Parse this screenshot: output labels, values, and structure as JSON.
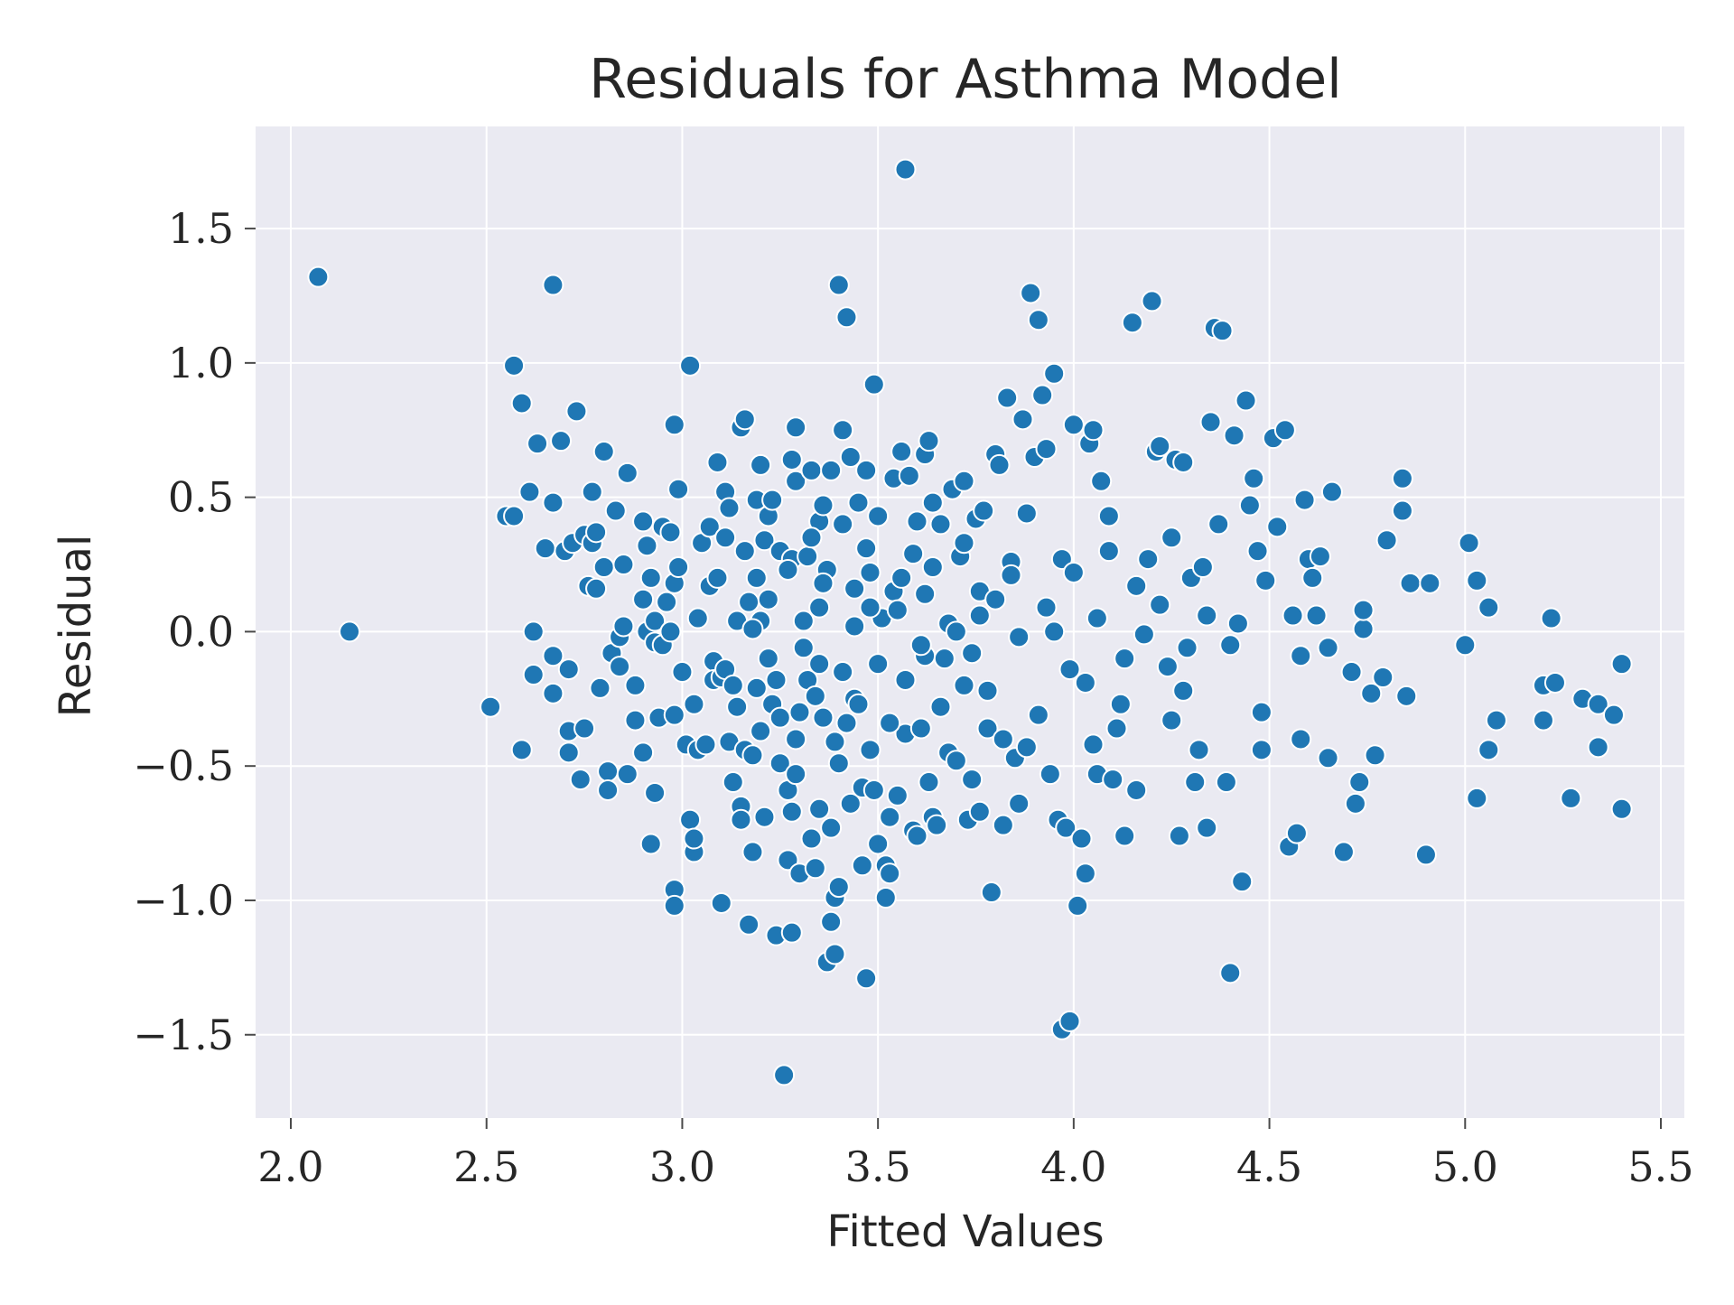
{
  "chart_data": {
    "type": "scatter",
    "title": "Residuals for Asthma Model",
    "xlabel": "Fitted Values",
    "ylabel": "Residual",
    "xlim": [
      1.91,
      5.56
    ],
    "ylim": [
      -1.81,
      1.88
    ],
    "x_ticks": [
      2.0,
      2.5,
      3.0,
      3.5,
      4.0,
      4.5,
      5.0,
      5.5
    ],
    "x_tick_labels": [
      "2.0",
      "2.5",
      "3.0",
      "3.5",
      "4.0",
      "4.5",
      "5.0",
      "5.5"
    ],
    "y_ticks": [
      -1.5,
      -1.0,
      -0.5,
      0.0,
      0.5,
      1.0,
      1.5
    ],
    "y_tick_labels": [
      "−1.5",
      "−1.0",
      "−0.5",
      "0.0",
      "0.5",
      "1.0",
      "1.5"
    ],
    "grid": true,
    "colors": {
      "point": "#1f77b4",
      "point_edge": "#ffffff",
      "plot_background": "#eaeaf2",
      "grid": "#ffffff"
    },
    "points": [
      [
        2.07,
        1.32
      ],
      [
        2.15,
        0.0
      ],
      [
        2.51,
        -0.28
      ],
      [
        2.55,
        0.43
      ],
      [
        2.57,
        0.99
      ],
      [
        2.57,
        0.43
      ],
      [
        2.59,
        0.85
      ],
      [
        2.59,
        -0.44
      ],
      [
        2.61,
        0.52
      ],
      [
        2.62,
        0.0
      ],
      [
        2.62,
        -0.16
      ],
      [
        2.63,
        0.7
      ],
      [
        2.65,
        0.31
      ],
      [
        2.67,
        1.29
      ],
      [
        2.67,
        0.48
      ],
      [
        2.67,
        -0.09
      ],
      [
        2.67,
        -0.23
      ],
      [
        2.69,
        0.71
      ],
      [
        2.7,
        0.3
      ],
      [
        2.71,
        -0.14
      ],
      [
        2.71,
        -0.37
      ],
      [
        2.71,
        -0.45
      ],
      [
        2.72,
        0.33
      ],
      [
        2.73,
        0.82
      ],
      [
        2.74,
        -0.55
      ],
      [
        2.75,
        -0.36
      ],
      [
        2.75,
        0.36
      ],
      [
        2.76,
        0.17
      ],
      [
        2.77,
        0.52
      ],
      [
        2.77,
        0.33
      ],
      [
        2.78,
        0.37
      ],
      [
        2.78,
        0.16
      ],
      [
        2.79,
        -0.21
      ],
      [
        2.8,
        0.67
      ],
      [
        2.8,
        0.24
      ],
      [
        2.81,
        -0.52
      ],
      [
        2.81,
        -0.59
      ],
      [
        2.82,
        -0.08
      ],
      [
        2.83,
        0.45
      ],
      [
        2.84,
        -0.13
      ],
      [
        2.84,
        -0.02
      ],
      [
        2.85,
        0.25
      ],
      [
        2.85,
        0.02
      ],
      [
        2.86,
        0.59
      ],
      [
        2.86,
        -0.53
      ],
      [
        2.88,
        -0.2
      ],
      [
        2.88,
        -0.33
      ],
      [
        2.9,
        0.41
      ],
      [
        2.9,
        0.12
      ],
      [
        2.9,
        -0.45
      ],
      [
        2.91,
        0.32
      ],
      [
        2.91,
        0.0
      ],
      [
        2.92,
        0.2
      ],
      [
        2.92,
        -0.79
      ],
      [
        2.93,
        -0.04
      ],
      [
        2.93,
        0.04
      ],
      [
        2.93,
        -0.6
      ],
      [
        2.94,
        -0.32
      ],
      [
        2.95,
        0.39
      ],
      [
        2.95,
        -0.05
      ],
      [
        2.96,
        0.11
      ],
      [
        2.97,
        0.37
      ],
      [
        2.97,
        0.0
      ],
      [
        2.98,
        0.77
      ],
      [
        2.98,
        0.18
      ],
      [
        2.98,
        -0.31
      ],
      [
        2.98,
        -0.96
      ],
      [
        2.98,
        -1.02
      ],
      [
        2.99,
        0.53
      ],
      [
        2.99,
        0.24
      ],
      [
        3.0,
        -0.15
      ],
      [
        3.01,
        -0.42
      ],
      [
        3.02,
        0.99
      ],
      [
        3.02,
        -0.7
      ],
      [
        3.03,
        -0.82
      ],
      [
        3.03,
        -0.77
      ],
      [
        3.03,
        -0.27
      ],
      [
        3.04,
        0.05
      ],
      [
        3.04,
        -0.44
      ],
      [
        3.05,
        0.33
      ],
      [
        3.06,
        -0.42
      ],
      [
        3.07,
        0.39
      ],
      [
        3.07,
        0.17
      ],
      [
        3.08,
        -0.11
      ],
      [
        3.08,
        -0.18
      ],
      [
        3.09,
        0.63
      ],
      [
        3.09,
        0.2
      ],
      [
        3.1,
        -1.01
      ],
      [
        3.1,
        -0.17
      ],
      [
        3.11,
        0.52
      ],
      [
        3.11,
        0.35
      ],
      [
        3.11,
        -0.14
      ],
      [
        3.12,
        0.46
      ],
      [
        3.12,
        -0.41
      ],
      [
        3.13,
        -0.56
      ],
      [
        3.13,
        -0.2
      ],
      [
        3.14,
        0.04
      ],
      [
        3.15,
        0.76
      ],
      [
        3.15,
        -0.65
      ],
      [
        3.15,
        -0.7
      ],
      [
        3.16,
        0.79
      ],
      [
        3.16,
        0.3
      ],
      [
        3.16,
        -0.44
      ],
      [
        3.17,
        0.11
      ],
      [
        3.17,
        -1.09
      ],
      [
        3.18,
        -0.82
      ],
      [
        3.18,
        -0.46
      ],
      [
        3.19,
        0.49
      ],
      [
        3.19,
        0.2
      ],
      [
        3.19,
        -0.21
      ],
      [
        3.2,
        0.62
      ],
      [
        3.2,
        0.04
      ],
      [
        3.2,
        -0.37
      ],
      [
        3.21,
        0.34
      ],
      [
        3.21,
        -0.69
      ],
      [
        3.22,
        0.43
      ],
      [
        3.22,
        -0.1
      ],
      [
        3.23,
        0.49
      ],
      [
        3.23,
        -0.27
      ],
      [
        3.24,
        -1.13
      ],
      [
        3.24,
        -0.18
      ],
      [
        3.25,
        -0.49
      ],
      [
        3.25,
        0.3
      ],
      [
        3.26,
        -1.65
      ],
      [
        3.27,
        -0.85
      ],
      [
        3.27,
        -0.59
      ],
      [
        3.28,
        0.64
      ],
      [
        3.28,
        -1.12
      ],
      [
        3.28,
        -0.67
      ],
      [
        3.28,
        0.27
      ],
      [
        3.29,
        0.76
      ],
      [
        3.29,
        0.56
      ],
      [
        3.29,
        -0.53
      ],
      [
        3.3,
        -0.9
      ],
      [
        3.3,
        -0.3
      ],
      [
        3.31,
        0.04
      ],
      [
        3.32,
        0.28
      ],
      [
        3.32,
        -0.18
      ],
      [
        3.33,
        -0.77
      ],
      [
        3.33,
        0.6
      ],
      [
        3.34,
        -0.88
      ],
      [
        3.34,
        -0.24
      ],
      [
        3.35,
        0.41
      ],
      [
        3.35,
        -0.66
      ],
      [
        3.35,
        0.09
      ],
      [
        3.36,
        0.47
      ],
      [
        3.36,
        -0.32
      ],
      [
        3.37,
        -1.23
      ],
      [
        3.37,
        0.23
      ],
      [
        3.38,
        -1.08
      ],
      [
        3.38,
        -0.73
      ],
      [
        3.38,
        0.6
      ],
      [
        3.39,
        -0.99
      ],
      [
        3.39,
        -1.2
      ],
      [
        3.4,
        1.29
      ],
      [
        3.4,
        -0.95
      ],
      [
        3.4,
        -0.49
      ],
      [
        3.41,
        0.75
      ],
      [
        3.41,
        0.4
      ],
      [
        3.42,
        1.17
      ],
      [
        3.42,
        -0.34
      ],
      [
        3.43,
        0.65
      ],
      [
        3.43,
        -0.64
      ],
      [
        3.44,
        -0.25
      ],
      [
        3.44,
        0.16
      ],
      [
        3.45,
        0.48
      ],
      [
        3.46,
        -0.58
      ],
      [
        3.46,
        -0.87
      ],
      [
        3.47,
        -1.29
      ],
      [
        3.47,
        0.6
      ],
      [
        3.48,
        0.22
      ],
      [
        3.48,
        -0.44
      ],
      [
        3.49,
        0.92
      ],
      [
        3.49,
        -0.59
      ],
      [
        3.5,
        -0.79
      ],
      [
        3.5,
        0.43
      ],
      [
        3.51,
        0.05
      ],
      [
        3.52,
        -0.87
      ],
      [
        3.52,
        -0.99
      ],
      [
        3.53,
        -0.9
      ],
      [
        3.53,
        -0.69
      ],
      [
        3.54,
        0.57
      ],
      [
        3.54,
        0.15
      ],
      [
        3.55,
        -0.61
      ],
      [
        3.56,
        0.67
      ],
      [
        3.56,
        0.2
      ],
      [
        3.57,
        1.72
      ],
      [
        3.57,
        -0.38
      ],
      [
        3.58,
        0.58
      ],
      [
        3.59,
        -0.74
      ],
      [
        3.6,
        -0.76
      ],
      [
        3.6,
        0.41
      ],
      [
        3.61,
        -0.36
      ],
      [
        3.62,
        0.66
      ],
      [
        3.62,
        -0.09
      ],
      [
        3.63,
        0.71
      ],
      [
        3.63,
        -0.56
      ],
      [
        3.64,
        -0.69
      ],
      [
        3.64,
        0.24
      ],
      [
        3.65,
        -0.72
      ],
      [
        3.66,
        0.4
      ],
      [
        3.67,
        -0.1
      ],
      [
        3.68,
        -0.45
      ],
      [
        3.69,
        0.53
      ],
      [
        3.7,
        -0.48
      ],
      [
        3.71,
        0.28
      ],
      [
        3.72,
        0.56
      ],
      [
        3.72,
        -0.2
      ],
      [
        3.73,
        -0.7
      ],
      [
        3.74,
        -0.55
      ],
      [
        3.75,
        0.42
      ],
      [
        3.76,
        -0.67
      ],
      [
        3.76,
        0.15
      ],
      [
        3.77,
        0.45
      ],
      [
        3.78,
        -0.36
      ],
      [
        3.79,
        -0.97
      ],
      [
        3.8,
        0.66
      ],
      [
        3.81,
        0.62
      ],
      [
        3.82,
        -0.72
      ],
      [
        3.83,
        0.87
      ],
      [
        3.84,
        0.26
      ],
      [
        3.85,
        -0.47
      ],
      [
        3.86,
        -0.64
      ],
      [
        3.87,
        0.79
      ],
      [
        3.88,
        -0.43
      ],
      [
        3.89,
        1.26
      ],
      [
        3.9,
        0.65
      ],
      [
        3.91,
        1.16
      ],
      [
        3.92,
        0.88
      ],
      [
        3.93,
        0.68
      ],
      [
        3.94,
        -0.53
      ],
      [
        3.95,
        0.96
      ],
      [
        3.96,
        -0.7
      ],
      [
        3.97,
        -1.48
      ],
      [
        3.98,
        -0.73
      ],
      [
        3.99,
        -1.45
      ],
      [
        4.0,
        0.77
      ],
      [
        4.01,
        -1.02
      ],
      [
        4.02,
        -0.77
      ],
      [
        4.03,
        -0.9
      ],
      [
        4.04,
        0.7
      ],
      [
        4.05,
        0.75
      ],
      [
        4.06,
        -0.53
      ],
      [
        4.07,
        0.56
      ],
      [
        4.09,
        0.43
      ],
      [
        4.1,
        -0.55
      ],
      [
        4.12,
        -0.27
      ],
      [
        4.13,
        -0.76
      ],
      [
        4.15,
        1.15
      ],
      [
        4.16,
        -0.59
      ],
      [
        4.18,
        -0.01
      ],
      [
        4.2,
        1.23
      ],
      [
        4.21,
        0.67
      ],
      [
        4.22,
        0.69
      ],
      [
        4.24,
        -0.13
      ],
      [
        4.25,
        0.35
      ],
      [
        4.26,
        0.64
      ],
      [
        4.27,
        -0.76
      ],
      [
        4.28,
        0.63
      ],
      [
        4.29,
        -0.06
      ],
      [
        4.3,
        0.2
      ],
      [
        4.31,
        -0.56
      ],
      [
        4.32,
        -0.44
      ],
      [
        4.33,
        0.24
      ],
      [
        4.34,
        -0.73
      ],
      [
        4.35,
        0.78
      ],
      [
        4.36,
        1.13
      ],
      [
        4.37,
        0.4
      ],
      [
        4.38,
        1.12
      ],
      [
        4.39,
        -0.56
      ],
      [
        4.4,
        -0.05
      ],
      [
        4.4,
        -1.27
      ],
      [
        4.41,
        0.73
      ],
      [
        4.42,
        0.03
      ],
      [
        4.43,
        -0.93
      ],
      [
        4.44,
        0.86
      ],
      [
        4.45,
        0.47
      ],
      [
        4.46,
        0.57
      ],
      [
        4.47,
        0.3
      ],
      [
        4.48,
        -0.44
      ],
      [
        4.48,
        -0.3
      ],
      [
        4.49,
        0.19
      ],
      [
        4.51,
        0.72
      ],
      [
        4.52,
        0.39
      ],
      [
        4.54,
        0.75
      ],
      [
        4.55,
        -0.8
      ],
      [
        4.56,
        0.06
      ],
      [
        4.57,
        -0.75
      ],
      [
        4.58,
        -0.4
      ],
      [
        4.58,
        -0.09
      ],
      [
        4.59,
        0.49
      ],
      [
        4.6,
        0.27
      ],
      [
        4.61,
        0.2
      ],
      [
        4.62,
        0.06
      ],
      [
        4.63,
        0.28
      ],
      [
        4.65,
        -0.47
      ],
      [
        4.65,
        -0.06
      ],
      [
        4.66,
        0.52
      ],
      [
        4.69,
        -0.82
      ],
      [
        4.71,
        -0.15
      ],
      [
        4.72,
        -0.64
      ],
      [
        4.73,
        -0.56
      ],
      [
        4.74,
        0.01
      ],
      [
        4.74,
        0.08
      ],
      [
        4.76,
        -0.23
      ],
      [
        4.77,
        -0.46
      ],
      [
        4.79,
        -0.17
      ],
      [
        4.8,
        0.34
      ],
      [
        4.84,
        0.57
      ],
      [
        4.84,
        0.45
      ],
      [
        4.85,
        -0.24
      ],
      [
        4.86,
        0.18
      ],
      [
        4.9,
        -0.83
      ],
      [
        4.91,
        0.18
      ],
      [
        5.0,
        -0.05
      ],
      [
        5.01,
        0.33
      ],
      [
        5.03,
        -0.62
      ],
      [
        5.03,
        0.19
      ],
      [
        5.06,
        -0.44
      ],
      [
        5.06,
        0.09
      ],
      [
        5.08,
        -0.33
      ],
      [
        5.2,
        -0.2
      ],
      [
        5.2,
        -0.33
      ],
      [
        5.22,
        0.05
      ],
      [
        5.23,
        -0.19
      ],
      [
        5.27,
        -0.62
      ],
      [
        5.3,
        -0.25
      ],
      [
        5.34,
        -0.27
      ],
      [
        5.34,
        -0.43
      ],
      [
        5.38,
        -0.31
      ],
      [
        5.4,
        -0.66
      ],
      [
        5.4,
        -0.12
      ],
      [
        3.22,
        0.12
      ],
      [
        3.31,
        -0.06
      ],
      [
        3.36,
        0.18
      ],
      [
        3.44,
        0.02
      ],
      [
        3.5,
        -0.12
      ],
      [
        3.55,
        0.08
      ],
      [
        3.62,
        0.14
      ],
      [
        3.68,
        0.03
      ],
      [
        3.74,
        -0.08
      ],
      [
        3.8,
        0.12
      ],
      [
        3.86,
        -0.02
      ],
      [
        3.93,
        0.09
      ],
      [
        3.99,
        -0.14
      ],
      [
        4.06,
        0.05
      ],
      [
        4.13,
        -0.1
      ],
      [
        3.25,
        -0.32
      ],
      [
        3.33,
        0.35
      ],
      [
        3.41,
        -0.15
      ],
      [
        3.47,
        0.31
      ],
      [
        3.53,
        -0.34
      ],
      [
        3.59,
        0.29
      ],
      [
        3.66,
        -0.28
      ],
      [
        3.72,
        0.33
      ],
      [
        3.78,
        -0.22
      ],
      [
        3.84,
        0.21
      ],
      [
        3.91,
        -0.31
      ],
      [
        3.97,
        0.27
      ],
      [
        4.03,
        -0.19
      ],
      [
        4.09,
        0.3
      ],
      [
        4.16,
        0.17
      ],
      [
        3.18,
        0.01
      ],
      [
        3.27,
        0.23
      ],
      [
        3.39,
        -0.41
      ],
      [
        3.45,
        -0.27
      ],
      [
        3.57,
        -0.18
      ],
      [
        3.64,
        0.48
      ],
      [
        3.7,
        0.0
      ],
      [
        3.82,
        -0.4
      ],
      [
        3.88,
        0.44
      ],
      [
        4.0,
        0.22
      ],
      [
        4.11,
        -0.36
      ],
      [
        4.22,
        0.1
      ],
      [
        4.28,
        -0.22
      ],
      [
        4.34,
        0.06
      ],
      [
        3.14,
        -0.28
      ],
      [
        3.29,
        -0.4
      ],
      [
        3.35,
        -0.12
      ],
      [
        3.48,
        0.09
      ],
      [
        3.61,
        -0.05
      ],
      [
        3.76,
        0.06
      ],
      [
        3.95,
        0.0
      ],
      [
        4.05,
        -0.42
      ],
      [
        4.19,
        0.27
      ],
      [
        4.25,
        -0.33
      ]
    ]
  }
}
